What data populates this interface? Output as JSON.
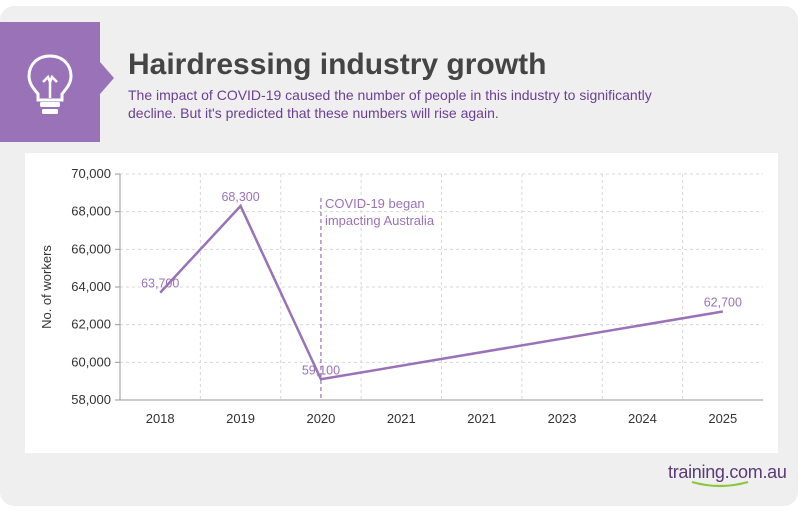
{
  "header": {
    "title": "Hairdressing industry growth",
    "subtitle": "The impact of COVID-19 caused the number of people in this industry to significantly decline. But it's predicted that these numbers will rise again.",
    "icon": "lightbulb-icon"
  },
  "brand": {
    "name": "training.com.au"
  },
  "colors": {
    "accent": "#9a72b8",
    "line": "#9a72b8",
    "title": "#444444",
    "subtitle": "#6b3f94"
  },
  "chart_data": {
    "type": "line",
    "title": "Hairdressing industry growth",
    "xlabel": "",
    "ylabel": "No. of workers",
    "categories": [
      "2018",
      "2019",
      "2020",
      "2021",
      "2021",
      "2023",
      "2024",
      "2025"
    ],
    "yticks": [
      "58,000",
      "60,000",
      "62,000",
      "64,000",
      "66,000",
      "68,000",
      "70,000"
    ],
    "ylim": [
      58000,
      70000
    ],
    "grid": true,
    "series": [
      {
        "name": "No. of workers",
        "points": [
          {
            "index": 0,
            "value": 63700,
            "label": "63,700"
          },
          {
            "index": 1,
            "value": 68300,
            "label": "68,300"
          },
          {
            "index": 2,
            "value": 59100,
            "label": "59,100"
          },
          {
            "index": 7,
            "value": 62700,
            "label": "62,700"
          }
        ]
      }
    ],
    "annotation": {
      "at_index": 2,
      "text_line1": "COVID-19 began",
      "text_line2": "impacting Australia"
    }
  }
}
